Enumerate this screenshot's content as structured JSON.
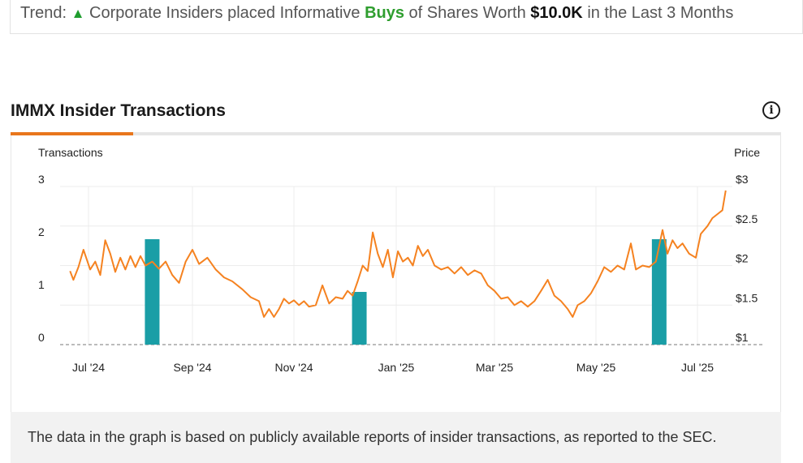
{
  "trend": {
    "prefix": "Trend:",
    "arrow": "▲",
    "text_before": "Corporate Insiders placed Informative",
    "buys_word": "Buys",
    "text_middle": "of Shares Worth",
    "amount": "$10.0K",
    "text_after": "in the Last 3 Months"
  },
  "section": {
    "title": "IMMX Insider Transactions",
    "info_icon": "info-icon"
  },
  "footer": {
    "text": "The data in the graph is based on publicly available reports of insider transactions, as reported to the SEC."
  },
  "colors": {
    "price_line": "#f58220",
    "bar": "#1a9ea6",
    "tab_active": "#e8761c",
    "buys_green": "#2f9e2f"
  },
  "chart_data": {
    "type": "bar",
    "left_axis_title": "Transactions",
    "right_axis_title": "Price",
    "left_ticks": [
      "0",
      "1",
      "2",
      "3"
    ],
    "right_ticks": [
      "$1",
      "$1.5",
      "$2",
      "$2.5",
      "$3"
    ],
    "x_ticks": [
      "Jul '24",
      "Sep '24",
      "Nov '24",
      "Jan '25",
      "Mar '25",
      "May '25",
      "Jul '25"
    ],
    "left_ylim": [
      0,
      3
    ],
    "right_ylim": [
      1,
      3
    ],
    "grid": true,
    "series": [
      {
        "type": "bar",
        "values": [
          {
            "x": "2024-08-08",
            "y": 2
          },
          {
            "x": "2024-12-10",
            "y": 1
          },
          {
            "x": "2025-06-08",
            "y": 2
          }
        ]
      },
      {
        "type": "line",
        "values": [
          {
            "x": "2024-06-20",
            "y": 1.93
          },
          {
            "x": "2024-06-22",
            "y": 1.82
          },
          {
            "x": "2024-06-25",
            "y": 1.98
          },
          {
            "x": "2024-06-28",
            "y": 2.2
          },
          {
            "x": "2024-07-02",
            "y": 1.95
          },
          {
            "x": "2024-07-05",
            "y": 2.05
          },
          {
            "x": "2024-07-08",
            "y": 1.88
          },
          {
            "x": "2024-07-11",
            "y": 2.32
          },
          {
            "x": "2024-07-14",
            "y": 2.15
          },
          {
            "x": "2024-07-17",
            "y": 1.92
          },
          {
            "x": "2024-07-20",
            "y": 2.1
          },
          {
            "x": "2024-07-23",
            "y": 1.95
          },
          {
            "x": "2024-07-26",
            "y": 2.12
          },
          {
            "x": "2024-07-29",
            "y": 1.98
          },
          {
            "x": "2024-08-01",
            "y": 2.12
          },
          {
            "x": "2024-08-04",
            "y": 2.0
          },
          {
            "x": "2024-08-08",
            "y": 2.05
          },
          {
            "x": "2024-08-12",
            "y": 1.96
          },
          {
            "x": "2024-08-16",
            "y": 2.05
          },
          {
            "x": "2024-08-20",
            "y": 1.88
          },
          {
            "x": "2024-08-24",
            "y": 1.78
          },
          {
            "x": "2024-08-28",
            "y": 2.05
          },
          {
            "x": "2024-09-01",
            "y": 2.2
          },
          {
            "x": "2024-09-05",
            "y": 2.02
          },
          {
            "x": "2024-09-10",
            "y": 2.1
          },
          {
            "x": "2024-09-15",
            "y": 1.95
          },
          {
            "x": "2024-09-20",
            "y": 1.85
          },
          {
            "x": "2024-09-25",
            "y": 1.8
          },
          {
            "x": "2024-10-01",
            "y": 1.7
          },
          {
            "x": "2024-10-06",
            "y": 1.6
          },
          {
            "x": "2024-10-11",
            "y": 1.55
          },
          {
            "x": "2024-10-14",
            "y": 1.35
          },
          {
            "x": "2024-10-17",
            "y": 1.45
          },
          {
            "x": "2024-10-20",
            "y": 1.35
          },
          {
            "x": "2024-10-23",
            "y": 1.45
          },
          {
            "x": "2024-10-26",
            "y": 1.58
          },
          {
            "x": "2024-10-29",
            "y": 1.52
          },
          {
            "x": "2024-11-01",
            "y": 1.56
          },
          {
            "x": "2024-11-04",
            "y": 1.5
          },
          {
            "x": "2024-11-07",
            "y": 1.55
          },
          {
            "x": "2024-11-10",
            "y": 1.48
          },
          {
            "x": "2024-11-14",
            "y": 1.5
          },
          {
            "x": "2024-11-18",
            "y": 1.75
          },
          {
            "x": "2024-11-22",
            "y": 1.52
          },
          {
            "x": "2024-11-26",
            "y": 1.6
          },
          {
            "x": "2024-11-30",
            "y": 1.58
          },
          {
            "x": "2024-12-03",
            "y": 1.68
          },
          {
            "x": "2024-12-06",
            "y": 1.62
          },
          {
            "x": "2024-12-09",
            "y": 1.8
          },
          {
            "x": "2024-12-12",
            "y": 2.0
          },
          {
            "x": "2024-12-15",
            "y": 1.93
          },
          {
            "x": "2024-12-18",
            "y": 2.42
          },
          {
            "x": "2024-12-21",
            "y": 2.15
          },
          {
            "x": "2024-12-24",
            "y": 1.98
          },
          {
            "x": "2024-12-27",
            "y": 2.2
          },
          {
            "x": "2024-12-30",
            "y": 1.85
          },
          {
            "x": "2025-01-02",
            "y": 2.18
          },
          {
            "x": "2025-01-05",
            "y": 2.05
          },
          {
            "x": "2025-01-08",
            "y": 2.1
          },
          {
            "x": "2025-01-11",
            "y": 2.0
          },
          {
            "x": "2025-01-14",
            "y": 2.25
          },
          {
            "x": "2025-01-17",
            "y": 2.12
          },
          {
            "x": "2025-01-20",
            "y": 2.2
          },
          {
            "x": "2025-01-24",
            "y": 2.0
          },
          {
            "x": "2025-01-28",
            "y": 1.95
          },
          {
            "x": "2025-02-01",
            "y": 1.98
          },
          {
            "x": "2025-02-05",
            "y": 1.9
          },
          {
            "x": "2025-02-09",
            "y": 1.98
          },
          {
            "x": "2025-02-13",
            "y": 1.88
          },
          {
            "x": "2025-02-17",
            "y": 1.94
          },
          {
            "x": "2025-02-21",
            "y": 1.9
          },
          {
            "x": "2025-02-25",
            "y": 1.75
          },
          {
            "x": "2025-03-01",
            "y": 1.68
          },
          {
            "x": "2025-03-05",
            "y": 1.58
          },
          {
            "x": "2025-03-09",
            "y": 1.6
          },
          {
            "x": "2025-03-13",
            "y": 1.5
          },
          {
            "x": "2025-03-17",
            "y": 1.55
          },
          {
            "x": "2025-03-21",
            "y": 1.48
          },
          {
            "x": "2025-03-25",
            "y": 1.55
          },
          {
            "x": "2025-03-29",
            "y": 1.68
          },
          {
            "x": "2025-04-02",
            "y": 1.82
          },
          {
            "x": "2025-04-06",
            "y": 1.62
          },
          {
            "x": "2025-04-10",
            "y": 1.55
          },
          {
            "x": "2025-04-14",
            "y": 1.45
          },
          {
            "x": "2025-04-17",
            "y": 1.35
          },
          {
            "x": "2025-04-20",
            "y": 1.5
          },
          {
            "x": "2025-04-24",
            "y": 1.55
          },
          {
            "x": "2025-04-28",
            "y": 1.65
          },
          {
            "x": "2025-05-02",
            "y": 1.8
          },
          {
            "x": "2025-05-06",
            "y": 1.98
          },
          {
            "x": "2025-05-10",
            "y": 1.92
          },
          {
            "x": "2025-05-14",
            "y": 2.0
          },
          {
            "x": "2025-05-18",
            "y": 1.95
          },
          {
            "x": "2025-05-22",
            "y": 2.28
          },
          {
            "x": "2025-05-25",
            "y": 1.95
          },
          {
            "x": "2025-05-29",
            "y": 2.0
          },
          {
            "x": "2025-06-02",
            "y": 1.98
          },
          {
            "x": "2025-06-06",
            "y": 2.05
          },
          {
            "x": "2025-06-10",
            "y": 2.45
          },
          {
            "x": "2025-06-13",
            "y": 2.15
          },
          {
            "x": "2025-06-16",
            "y": 2.32
          },
          {
            "x": "2025-06-19",
            "y": 2.22
          },
          {
            "x": "2025-06-22",
            "y": 2.28
          },
          {
            "x": "2025-06-26",
            "y": 2.15
          },
          {
            "x": "2025-06-30",
            "y": 2.1
          },
          {
            "x": "2025-07-03",
            "y": 2.4
          },
          {
            "x": "2025-07-07",
            "y": 2.5
          },
          {
            "x": "2025-07-10",
            "y": 2.6
          },
          {
            "x": "2025-07-13",
            "y": 2.65
          },
          {
            "x": "2025-07-16",
            "y": 2.7
          },
          {
            "x": "2025-07-18",
            "y": 2.95
          }
        ]
      }
    ]
  }
}
